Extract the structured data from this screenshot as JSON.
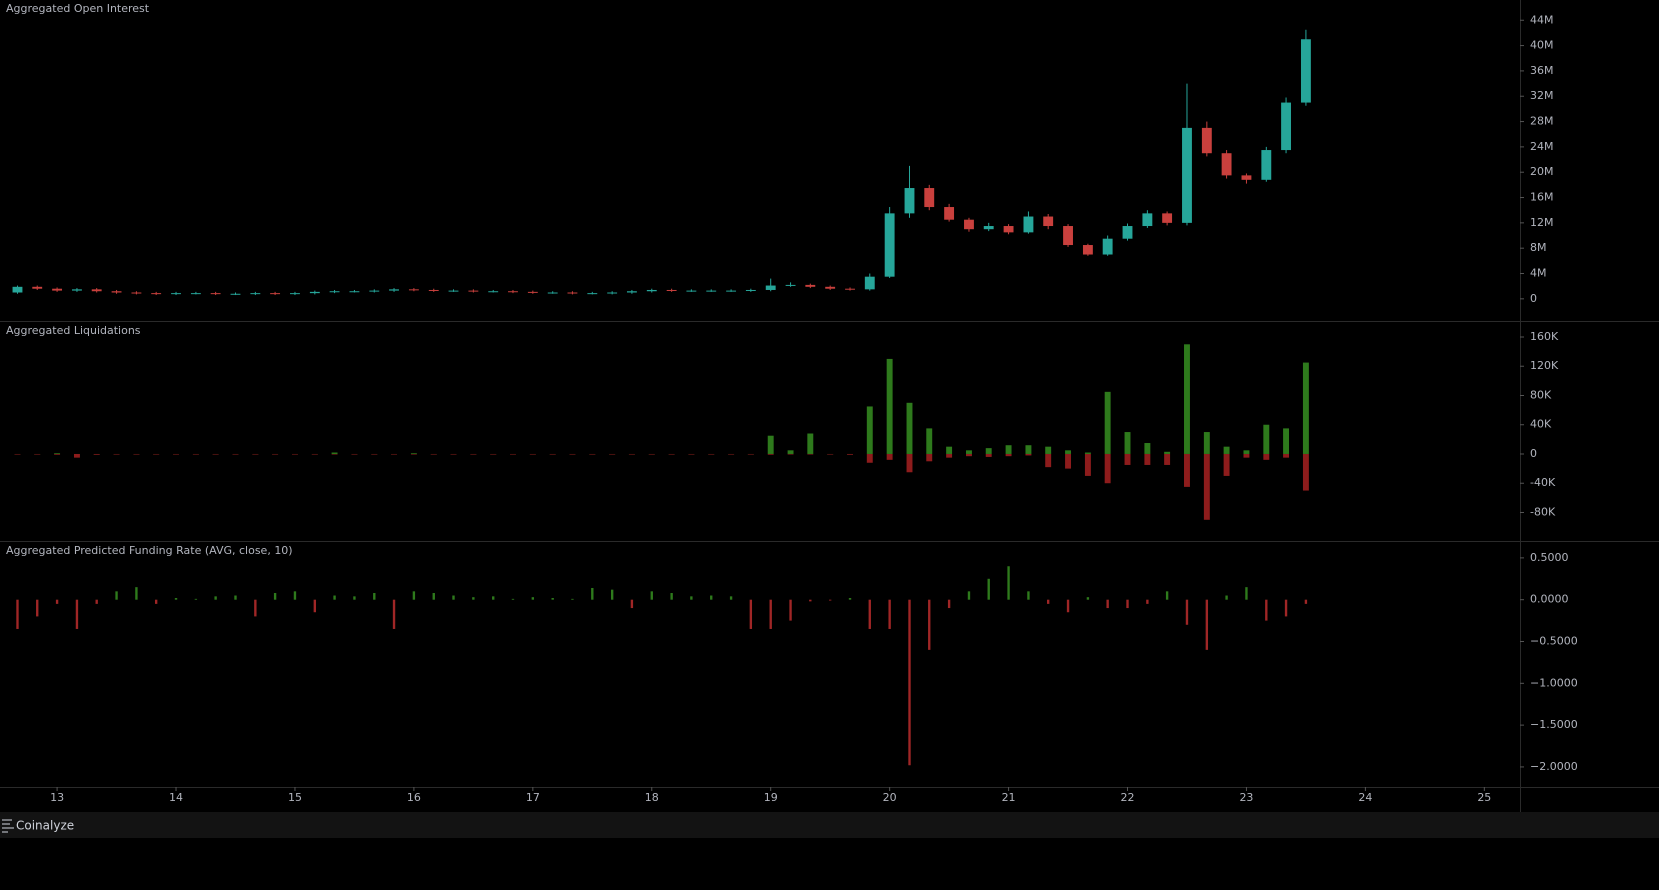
{
  "chart_data": [
    {
      "type": "candlestick",
      "title": "Aggregated Open Interest",
      "x": [
        12.667,
        12.833,
        13,
        13.167,
        13.333,
        13.5,
        13.667,
        13.833,
        14,
        14.167,
        14.333,
        14.5,
        14.667,
        14.833,
        15,
        15.167,
        15.333,
        15.5,
        15.667,
        15.833,
        16,
        16.167,
        16.333,
        16.5,
        16.667,
        16.833,
        17,
        17.167,
        17.333,
        17.5,
        17.667,
        17.833,
        18,
        18.167,
        18.333,
        18.5,
        18.667,
        18.833,
        19,
        19.167,
        19.333,
        19.5,
        19.667,
        19.833,
        20,
        20.167,
        20.333,
        20.5,
        20.667,
        20.833,
        21,
        21.167,
        21.333,
        21.5,
        21.667,
        21.833,
        22,
        22.167,
        22.333,
        22.5,
        22.667,
        22.833,
        23,
        23.167,
        23.333,
        23.5
      ],
      "open": [
        1000000,
        1900000,
        1600000,
        1300000,
        1500000,
        1200000,
        1000000,
        900000,
        800000,
        900000,
        900000,
        800000,
        800000,
        900000,
        800000,
        900000,
        1100000,
        1200000,
        1200000,
        1300000,
        1500000,
        1400000,
        1300000,
        1300000,
        1200000,
        1200000,
        1100000,
        1000000,
        1000000,
        900000,
        900000,
        1000000,
        1200000,
        1400000,
        1300000,
        1300000,
        1300000,
        1300000,
        1400000,
        2100000,
        2200000,
        1900000,
        1600000,
        1500000,
        3500000,
        13500000,
        17500000,
        14500000,
        12500000,
        11000000,
        11500000,
        10500000,
        13000000,
        11500000,
        8500000,
        7000000,
        9500000,
        11500000,
        13500000,
        12000000,
        27000000,
        23000000,
        19500000,
        18800000,
        23500000,
        31000000
      ],
      "high": [
        2100000,
        2100000,
        1800000,
        1700000,
        1700000,
        1400000,
        1200000,
        1100000,
        1100000,
        1100000,
        1100000,
        1000000,
        1100000,
        1100000,
        1100000,
        1300000,
        1400000,
        1400000,
        1500000,
        1700000,
        1700000,
        1600000,
        1500000,
        1500000,
        1400000,
        1400000,
        1300000,
        1200000,
        1200000,
        1100000,
        1200000,
        1400000,
        1600000,
        1600000,
        1500000,
        1500000,
        1500000,
        1600000,
        3200000,
        2600000,
        2400000,
        2100000,
        1800000,
        4000000,
        14500000,
        21000000,
        18000000,
        15000000,
        12800000,
        12000000,
        11800000,
        13800000,
        13400000,
        11800000,
        8700000,
        10000000,
        11900000,
        14000000,
        13800000,
        34000000,
        28000000,
        23500000,
        19800000,
        24000000,
        31800000,
        42500000
      ],
      "low": [
        800000,
        1400000,
        1100000,
        1100000,
        1000000,
        800000,
        700000,
        600000,
        600000,
        700000,
        600000,
        600000,
        600000,
        600000,
        600000,
        700000,
        900000,
        1000000,
        1000000,
        1100000,
        1200000,
        1100000,
        1100000,
        1000000,
        1000000,
        900000,
        800000,
        800000,
        700000,
        700000,
        700000,
        800000,
        1000000,
        1100000,
        1100000,
        1100000,
        1100000,
        1100000,
        1200000,
        1900000,
        1700000,
        1400000,
        1300000,
        1300000,
        3300000,
        12800000,
        14000000,
        12200000,
        10600000,
        10700000,
        10200000,
        10300000,
        11000000,
        8200000,
        6800000,
        6800000,
        9200000,
        11200000,
        11600000,
        11600000,
        22500000,
        19000000,
        18200000,
        18500000,
        23000000,
        30500000
      ],
      "close": [
        1900000,
        1600000,
        1300000,
        1500000,
        1200000,
        1000000,
        900000,
        800000,
        900000,
        900000,
        800000,
        800000,
        900000,
        800000,
        900000,
        1100000,
        1200000,
        1200000,
        1300000,
        1500000,
        1400000,
        1300000,
        1300000,
        1200000,
        1200000,
        1100000,
        1000000,
        1000000,
        900000,
        900000,
        1000000,
        1200000,
        1400000,
        1300000,
        1300000,
        1300000,
        1300000,
        1400000,
        2100000,
        2200000,
        1900000,
        1600000,
        1500000,
        3500000,
        13500000,
        17500000,
        14500000,
        12500000,
        11000000,
        11500000,
        10500000,
        13000000,
        11500000,
        8500000,
        7000000,
        9500000,
        11500000,
        13500000,
        12000000,
        27000000,
        23000000,
        19500000,
        18800000,
        23500000,
        31000000,
        41000000
      ],
      "up_color": "#26a69a",
      "down_color": "#c9403d",
      "xlim": [
        12.52,
        25.3
      ],
      "ylim": [
        -3500000,
        47200000
      ],
      "yticks": [
        0,
        {
          "value": 4000000,
          "label": "4M"
        },
        {
          "value": 8000000,
          "label": "8M"
        },
        {
          "value": 12000000,
          "label": "12M"
        },
        {
          "value": 16000000,
          "label": "16M"
        },
        {
          "value": 20000000,
          "label": "20M"
        },
        {
          "value": 24000000,
          "label": "24M"
        },
        {
          "value": 28000000,
          "label": "28M"
        },
        {
          "value": 32000000,
          "label": "32M"
        },
        {
          "value": 36000000,
          "label": "36M"
        },
        {
          "value": 40000000,
          "label": "40M"
        },
        {
          "value": 44000000,
          "label": "44M"
        }
      ]
    },
    {
      "type": "bar",
      "title": "Aggregated Liquidations",
      "x": [
        12.667,
        12.833,
        13,
        13.167,
        13.333,
        13.5,
        13.667,
        13.833,
        14,
        14.167,
        14.333,
        14.5,
        14.667,
        14.833,
        15,
        15.167,
        15.333,
        15.5,
        15.667,
        15.833,
        16,
        16.167,
        16.333,
        16.5,
        16.667,
        16.833,
        17,
        17.167,
        17.333,
        17.5,
        17.667,
        17.833,
        18,
        18.167,
        18.333,
        18.5,
        18.667,
        18.833,
        19,
        19.167,
        19.333,
        19.5,
        19.667,
        19.833,
        20,
        20.167,
        20.333,
        20.5,
        20.667,
        20.833,
        21,
        21.167,
        21.333,
        21.5,
        21.667,
        21.833,
        22,
        22.167,
        22.333,
        22.5,
        22.667,
        22.833,
        23,
        23.167,
        23.333,
        23.5
      ],
      "series": [
        {
          "color": "#2e7a1c",
          "values": [
            0,
            0,
            1000,
            0,
            0,
            0,
            0,
            0,
            0,
            0,
            0,
            0,
            0,
            0,
            0,
            0,
            2000,
            0,
            0,
            0,
            1000,
            0,
            0,
            0,
            0,
            0,
            0,
            0,
            0,
            0,
            0,
            0,
            0,
            0,
            0,
            0,
            0,
            0,
            25000,
            5000,
            28000,
            0,
            0,
            65000,
            130000,
            70000,
            35000,
            10000,
            5000,
            8000,
            12000,
            12000,
            10000,
            5000,
            2000,
            85000,
            30000,
            15000,
            3000,
            150000,
            30000,
            10000,
            5000,
            40000,
            35000,
            125000
          ]
        },
        {
          "color": "#8e1c1c",
          "values": [
            0,
            0,
            -1000,
            -5000,
            -1000,
            0,
            0,
            0,
            0,
            0,
            0,
            0,
            0,
            0,
            0,
            0,
            0,
            0,
            0,
            0,
            0,
            0,
            0,
            0,
            0,
            0,
            0,
            0,
            0,
            0,
            0,
            0,
            0,
            0,
            0,
            0,
            0,
            0,
            -1000,
            0,
            0,
            0,
            -1000,
            -12000,
            -8000,
            -25000,
            -10000,
            -5000,
            -3000,
            -4000,
            -3000,
            -2000,
            -18000,
            -20000,
            -30000,
            -40000,
            -15000,
            -15000,
            -15000,
            -45000,
            -90000,
            -30000,
            -5000,
            -8000,
            -5000,
            -50000
          ]
        }
      ],
      "xlim": [
        12.52,
        25.3
      ],
      "ylim": [
        -119000,
        180500
      ],
      "yticks": [
        {
          "value": -80000,
          "label": "-80K"
        },
        {
          "value": -40000,
          "label": "-40K"
        },
        0,
        {
          "value": 40000,
          "label": "40K"
        },
        {
          "value": 80000,
          "label": "80K"
        },
        {
          "value": 120000,
          "label": "120K"
        },
        {
          "value": 160000,
          "label": "160K"
        }
      ]
    },
    {
      "type": "bar",
      "title": "Aggregated Predicted Funding Rate (AVG, close, 10)",
      "x": [
        12.667,
        12.833,
        13,
        13.167,
        13.333,
        13.5,
        13.667,
        13.833,
        14,
        14.167,
        14.333,
        14.5,
        14.667,
        14.833,
        15,
        15.167,
        15.333,
        15.5,
        15.667,
        15.833,
        16,
        16.167,
        16.333,
        16.5,
        16.667,
        16.833,
        17,
        17.167,
        17.333,
        17.5,
        17.667,
        17.833,
        18,
        18.167,
        18.333,
        18.5,
        18.667,
        18.833,
        19,
        19.167,
        19.333,
        19.5,
        19.667,
        19.833,
        20,
        20.167,
        20.333,
        20.5,
        20.667,
        20.833,
        21,
        21.167,
        21.333,
        21.5,
        21.667,
        21.833,
        22,
        22.167,
        22.333,
        22.5,
        22.667,
        22.833,
        23,
        23.167,
        23.333,
        23.5
      ],
      "values": [
        -0.35,
        -0.2,
        -0.05,
        -0.35,
        -0.05,
        0.1,
        0.15,
        -0.05,
        0.02,
        0.01,
        0.04,
        0.05,
        -0.2,
        0.08,
        0.1,
        -0.15,
        0.05,
        0.04,
        0.08,
        -0.35,
        0.1,
        0.08,
        0.05,
        0.03,
        0.04,
        0.01,
        0.03,
        0.02,
        0.01,
        0.14,
        0.12,
        -0.1,
        0.1,
        0.08,
        0.04,
        0.05,
        0.04,
        -0.35,
        -0.35,
        -0.25,
        -0.02,
        -0.01,
        0.02,
        -0.35,
        -0.35,
        -1.98,
        -0.6,
        -0.1,
        0.1,
        0.25,
        0.4,
        0.1,
        -0.05,
        -0.15,
        0.03,
        -0.1,
        -0.1,
        -0.05,
        0.1,
        -0.3,
        -0.6,
        0.05,
        0.15,
        -0.25,
        -0.2,
        -0.05
      ],
      "up_color": "#2e7a1c",
      "down_color": "#a02626",
      "xlim": [
        12.52,
        25.3
      ],
      "ylim": [
        -2.24,
        0.69
      ],
      "yticks": [
        {
          "value": -2,
          "label": "−2.0000"
        },
        {
          "value": -1.5,
          "label": "−1.5000"
        },
        {
          "value": -1,
          "label": "−1.0000"
        },
        {
          "value": -0.5,
          "label": "−0.5000"
        },
        {
          "value": 0,
          "label": "0.0000"
        },
        {
          "value": 0.5,
          "label": "0.5000"
        }
      ],
      "xticks": [
        13,
        14,
        15,
        16,
        17,
        18,
        19,
        20,
        21,
        22,
        23,
        24,
        25
      ]
    }
  ],
  "footer": "Coinalyze"
}
